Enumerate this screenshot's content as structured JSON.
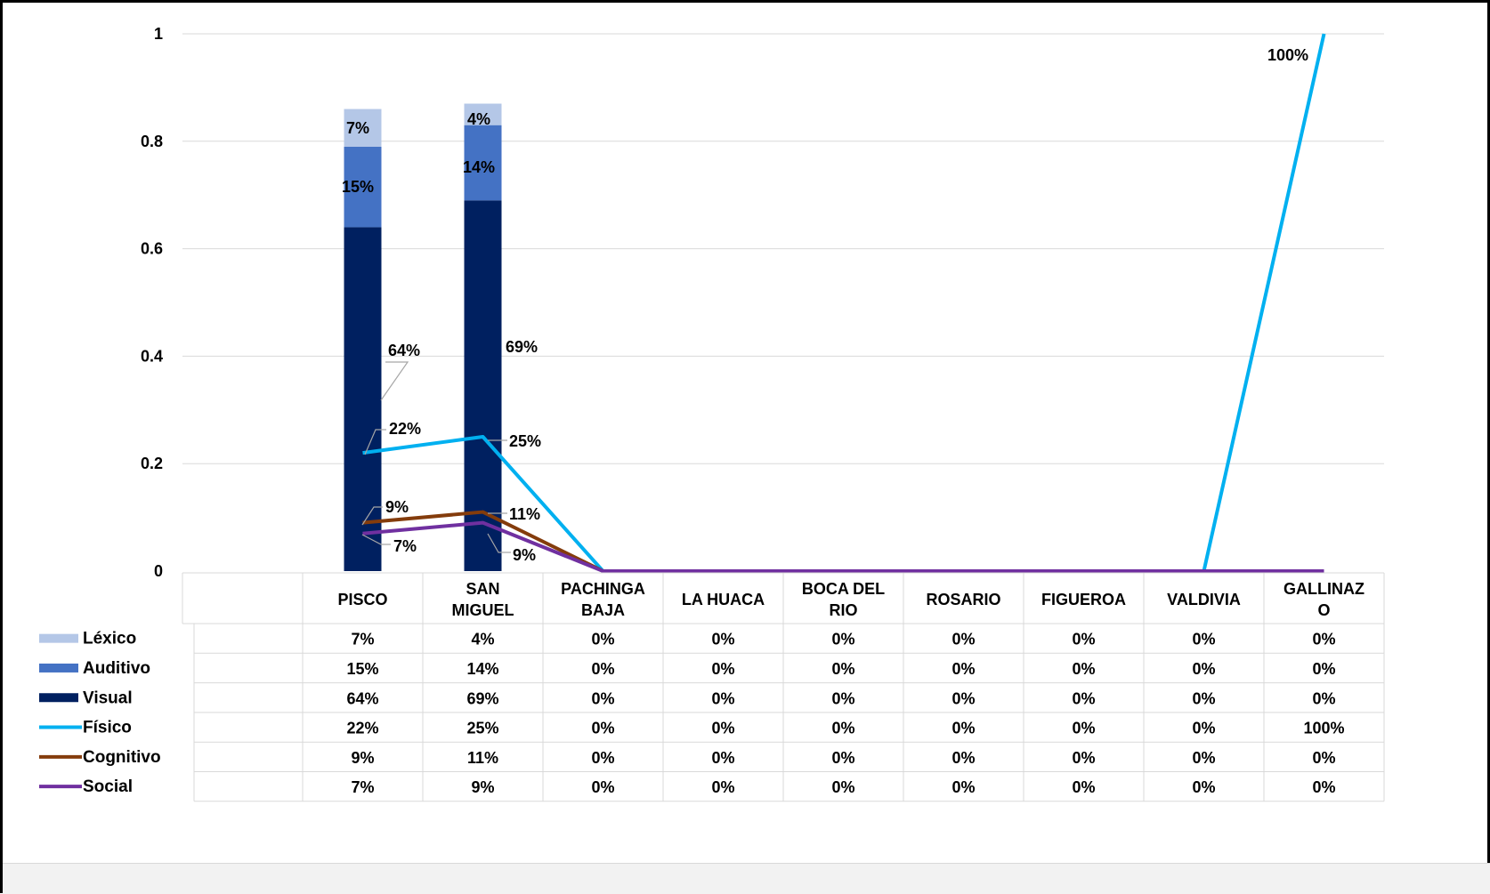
{
  "chart_data": {
    "type": "bar",
    "stacked": true,
    "categories": [
      "PISCO",
      "SAN MIGUEL",
      "PACHINGA BAJA",
      "LA HUACA",
      "BOCA DEL RIO",
      "ROSARIO",
      "FIGUEROA",
      "VALDIVIA",
      "GALLINAZO"
    ],
    "category_lines": [
      [
        "PISCO"
      ],
      [
        "SAN",
        "MIGUEL"
      ],
      [
        "PACHINGA",
        "BAJA"
      ],
      [
        "LA HUACA"
      ],
      [
        "BOCA DEL",
        "RIO"
      ],
      [
        "ROSARIO"
      ],
      [
        "FIGUEROA"
      ],
      [
        "VALDIVIA"
      ],
      [
        "GALLINAZ",
        "O"
      ]
    ],
    "yticks": [
      "0",
      "0.2",
      "0.4",
      "0.6",
      "0.8",
      "1"
    ],
    "ylim": [
      0,
      1
    ],
    "grid": true,
    "legend": "data-table",
    "bar_series": [
      {
        "name": "Visual",
        "color": "#002060",
        "values": [
          0.64,
          0.69,
          0,
          0,
          0,
          0,
          0,
          0,
          0
        ],
        "labels": [
          "64%",
          "69%",
          "0%",
          "0%",
          "0%",
          "0%",
          "0%",
          "0%",
          "0%"
        ]
      },
      {
        "name": "Auditivo",
        "color": "#4472c4",
        "values": [
          0.15,
          0.14,
          0,
          0,
          0,
          0,
          0,
          0,
          0
        ],
        "labels": [
          "15%",
          "14%",
          "0%",
          "0%",
          "0%",
          "0%",
          "0%",
          "0%",
          "0%"
        ]
      },
      {
        "name": "Léxico",
        "color": "#b4c7e7",
        "values": [
          0.07,
          0.04,
          0,
          0,
          0,
          0,
          0,
          0,
          0
        ],
        "labels": [
          "7%",
          "4%",
          "0%",
          "0%",
          "0%",
          "0%",
          "0%",
          "0%",
          "0%"
        ]
      }
    ],
    "line_series": [
      {
        "name": "Físico",
        "color": "#00b0f0",
        "values": [
          0.22,
          0.25,
          0,
          0,
          0,
          0,
          0,
          0,
          1.0
        ],
        "labels": [
          "22%",
          "25%",
          "0%",
          "0%",
          "0%",
          "0%",
          "0%",
          "0%",
          "100%"
        ]
      },
      {
        "name": "Cognitivo",
        "color": "#843c0c",
        "values": [
          0.09,
          0.11,
          0,
          0,
          0,
          0,
          0,
          0,
          0
        ],
        "labels": [
          "9%",
          "11%",
          "0%",
          "0%",
          "0%",
          "0%",
          "0%",
          "0%",
          "0%"
        ]
      },
      {
        "name": "Social",
        "color": "#7030a0",
        "values": [
          0.07,
          0.09,
          0,
          0,
          0,
          0,
          0,
          0,
          0
        ],
        "labels": [
          "7%",
          "9%",
          "0%",
          "0%",
          "0%",
          "0%",
          "0%",
          "0%",
          "0%"
        ]
      }
    ],
    "table_rows": [
      {
        "name": "Léxico",
        "marker": "bar",
        "color": "#b4c7e7",
        "cells": [
          "7%",
          "4%",
          "0%",
          "0%",
          "0%",
          "0%",
          "0%",
          "0%",
          "0%"
        ]
      },
      {
        "name": "Auditivo",
        "marker": "bar",
        "color": "#4472c4",
        "cells": [
          "15%",
          "14%",
          "0%",
          "0%",
          "0%",
          "0%",
          "0%",
          "0%",
          "0%"
        ]
      },
      {
        "name": "Visual",
        "marker": "bar",
        "color": "#002060",
        "cells": [
          "64%",
          "69%",
          "0%",
          "0%",
          "0%",
          "0%",
          "0%",
          "0%",
          "0%"
        ]
      },
      {
        "name": "Físico",
        "marker": "line",
        "color": "#00b0f0",
        "cells": [
          "22%",
          "25%",
          "0%",
          "0%",
          "0%",
          "0%",
          "0%",
          "0%",
          "100%"
        ]
      },
      {
        "name": "Cognitivo",
        "marker": "line",
        "color": "#843c0c",
        "cells": [
          "9%",
          "11%",
          "0%",
          "0%",
          "0%",
          "0%",
          "0%",
          "0%",
          "0%"
        ]
      },
      {
        "name": "Social",
        "marker": "line",
        "color": "#7030a0",
        "cells": [
          "7%",
          "9%",
          "0%",
          "0%",
          "0%",
          "0%",
          "0%",
          "0%",
          "0%"
        ]
      }
    ]
  }
}
